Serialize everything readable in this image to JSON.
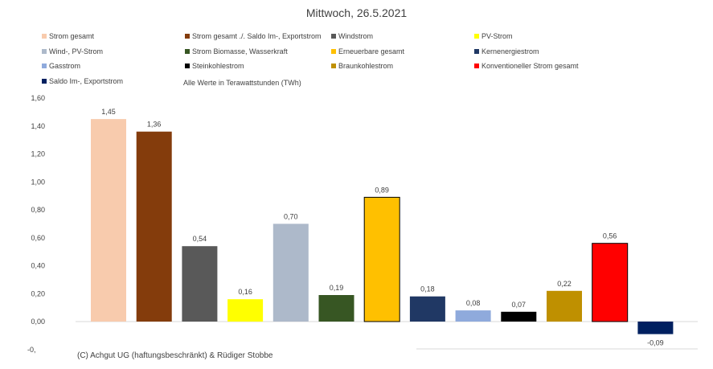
{
  "chart_data": {
    "type": "bar",
    "title": "Mittwoch,  26.5.2021",
    "subtitle": "Alle Werte in Terawattstunden (TWh)",
    "categories": [
      "Strom gesamt",
      "Strom gesamt ./. Saldo Im-, Exportstrom",
      "Windstrom",
      "PV-Strom",
      "Wind-, PV-Strom",
      "Strom Biomasse, Wasserkraft",
      "Erneuerbare gesamt",
      "Kernenergiestrom",
      "Gasstrom",
      "Steinkohlestrom",
      "Braunkohlestrom",
      "Konventioneller Strom gesamt",
      "Saldo Im-, Exportstrom"
    ],
    "values": [
      1.45,
      1.36,
      0.54,
      0.16,
      0.7,
      0.19,
      0.89,
      0.18,
      0.08,
      0.07,
      0.22,
      0.56,
      -0.09
    ],
    "value_labels": [
      "1,45",
      "1,36",
      "0,54",
      "0,16",
      "0,70",
      "0,19",
      "0,89",
      "0,18",
      "0,08",
      "0,07",
      "0,22",
      "0,56",
      "-0,09"
    ],
    "colors": [
      "#F8CBAD",
      "#843C0C",
      "#595959",
      "#FFFF00",
      "#ADB9CA",
      "#375623",
      "#FFC000",
      "#203864",
      "#8FAADC",
      "#000000",
      "#BF9000",
      "#FF0000",
      "#002060"
    ],
    "ylim": [
      -0.2,
      1.6
    ],
    "yticks": [
      1.6,
      1.4,
      1.2,
      1.0,
      0.8,
      0.6,
      0.4,
      0.2,
      0.0
    ],
    "ytick_labels": [
      "1,60",
      "1,40",
      "1,20",
      "1,00",
      "0,80",
      "0,60",
      "0,40",
      "0,20",
      "0,00"
    ],
    "ytick_partial_label": "-0,",
    "grid": false,
    "legend_position": "top"
  },
  "copyright": "(C) Achgut UG (haftungsbeschränkt) & Rüdiger Stobbe"
}
